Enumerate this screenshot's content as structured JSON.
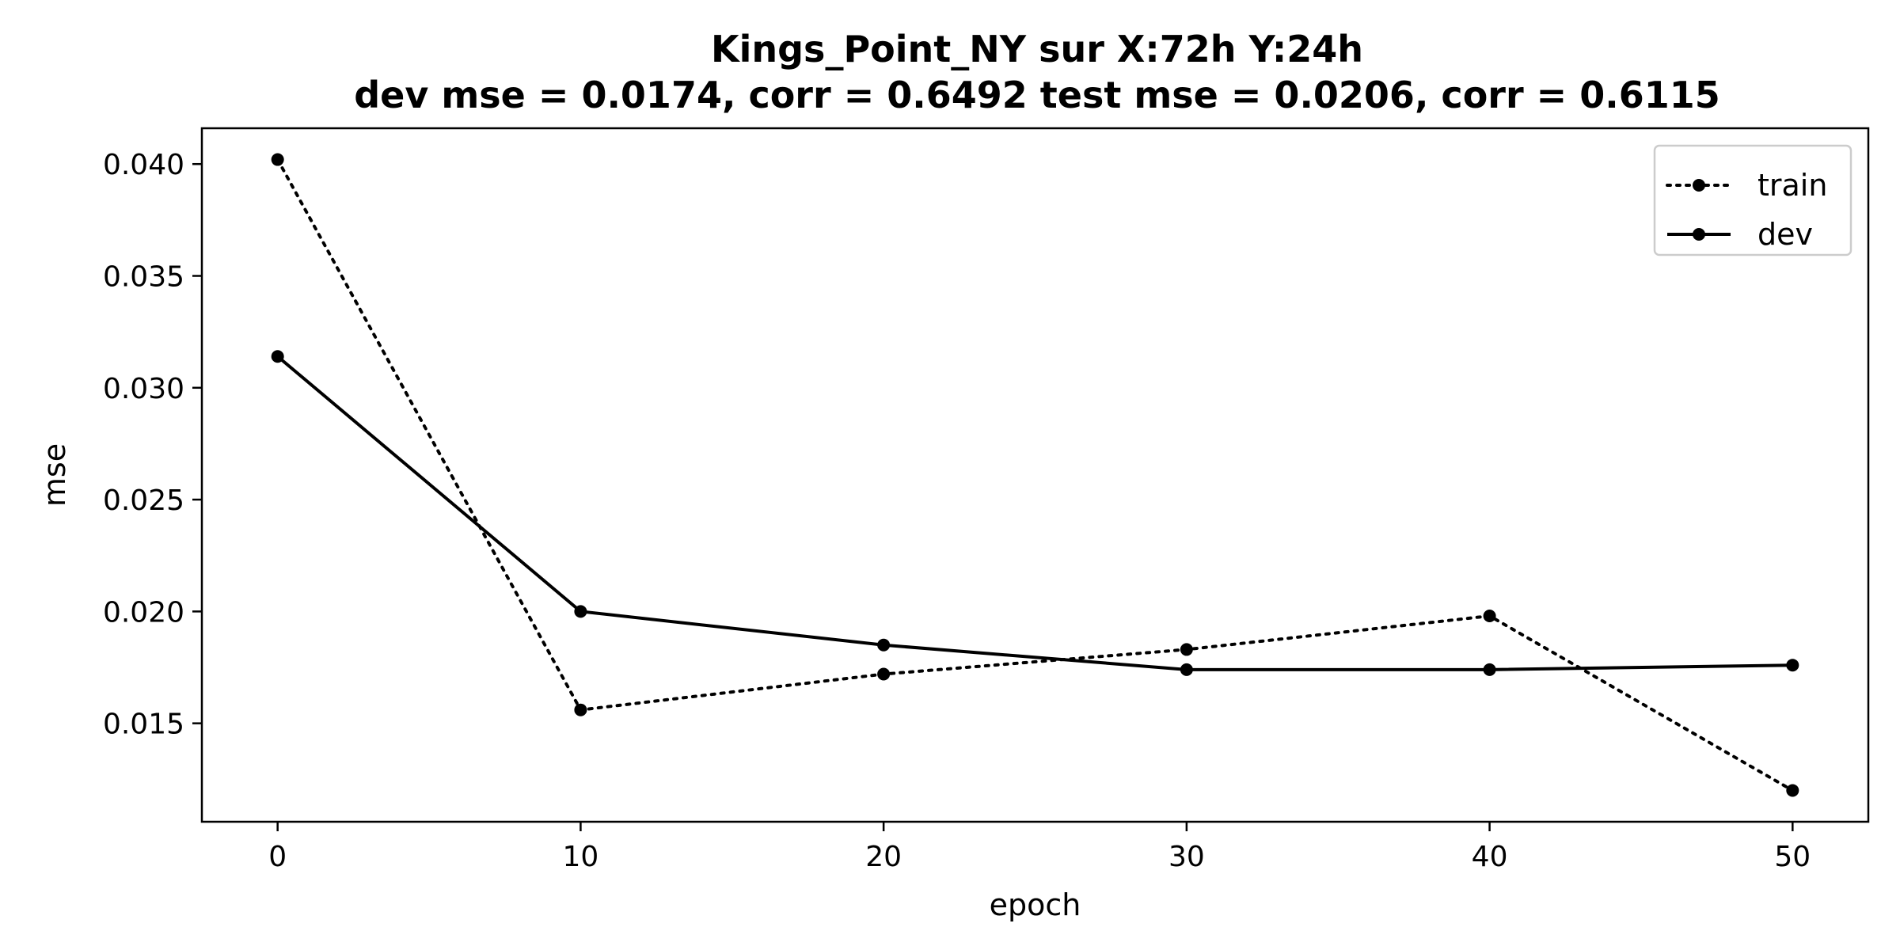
{
  "chart_data": {
    "type": "line",
    "title": "Kings_Point_NY   sur   X:72h   Y:24h",
    "subtitle": "dev mse = 0.0174, corr = 0.6492   test mse = 0.0206, corr = 0.6115",
    "xlabel": "epoch",
    "ylabel": "mse",
    "x": [
      0,
      10,
      20,
      30,
      40,
      50
    ],
    "xlim": [
      -2.5,
      52.5
    ],
    "ylim": [
      0.0106,
      0.0416
    ],
    "xticks": [
      0,
      10,
      20,
      30,
      40,
      50
    ],
    "yticks": [
      0.015,
      0.02,
      0.025,
      0.03,
      0.035,
      0.04
    ],
    "xtick_labels": [
      "0",
      "10",
      "20",
      "30",
      "40",
      "50"
    ],
    "ytick_labels": [
      "0.015",
      "0.020",
      "0.025",
      "0.030",
      "0.035",
      "0.040"
    ],
    "grid": false,
    "legend_position": "top-right",
    "series": [
      {
        "name": "train",
        "style": "dotted",
        "marker": "dot",
        "color": "#000000",
        "values": [
          0.0402,
          0.0156,
          0.0172,
          0.0183,
          0.0198,
          0.012
        ]
      },
      {
        "name": "dev",
        "style": "solid",
        "marker": "dot",
        "color": "#000000",
        "values": [
          0.0314,
          0.02,
          0.0185,
          0.0174,
          0.0174,
          0.0176
        ]
      }
    ]
  }
}
